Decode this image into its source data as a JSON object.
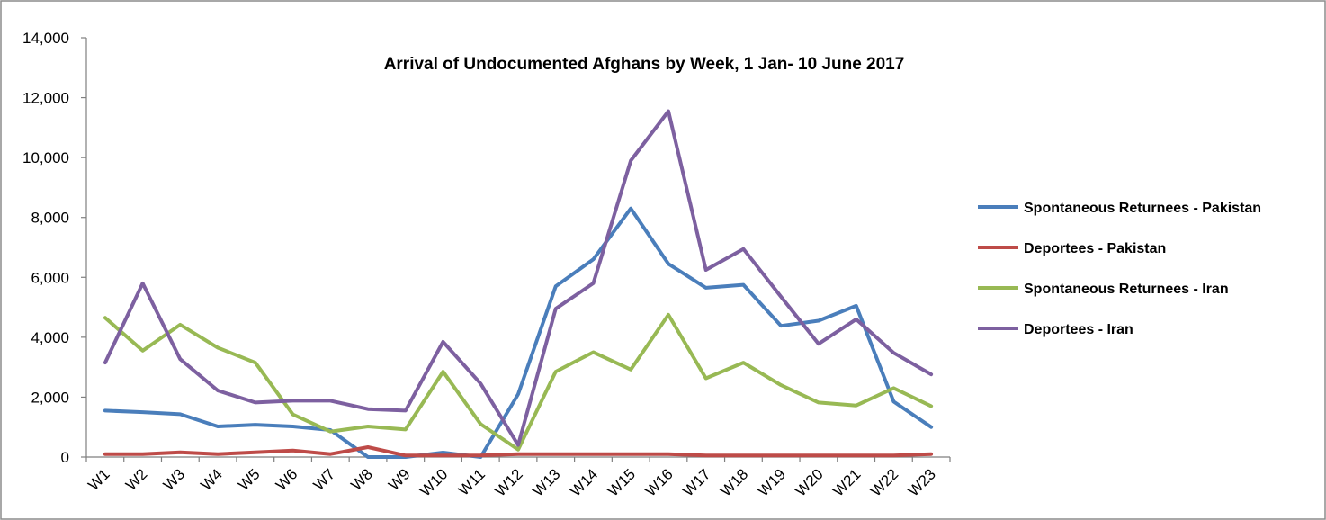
{
  "chart_data": {
    "type": "line",
    "title": "Arrival of Undocumented  Afghans by Week, 1 Jan- 10 June 2017",
    "categories": [
      "W1",
      "W2",
      "W3",
      "W4",
      "W5",
      "W6",
      "W7",
      "W8",
      "W9",
      "W10",
      "W11",
      "W12",
      "W13",
      "W14",
      "W15",
      "W16",
      "W17",
      "W18",
      "W19",
      "W20",
      "W21",
      "W22",
      "W23"
    ],
    "y_ticks": [
      "0",
      "2,000",
      "4,000",
      "6,000",
      "8,000",
      "10,000",
      "12,000",
      "14,000"
    ],
    "ylim": [
      0,
      14000
    ],
    "grid": false,
    "legend_position": "right",
    "series": [
      {
        "name": "Spontaneous Returnees - Pakistan",
        "color": "#4a7ebb",
        "values": [
          1550,
          1500,
          1430,
          1020,
          1080,
          1020,
          900,
          0,
          0,
          150,
          0,
          2100,
          5700,
          6600,
          8300,
          6450,
          5650,
          5750,
          4380,
          4550,
          5050,
          1850,
          1000
        ]
      },
      {
        "name": "Deportees - Pakistan",
        "color": "#be4b48",
        "values": [
          100,
          100,
          160,
          100,
          160,
          220,
          100,
          330,
          50,
          50,
          50,
          100,
          100,
          100,
          100,
          100,
          50,
          50,
          50,
          50,
          50,
          50,
          100
        ]
      },
      {
        "name": "Spontaneous Returnees - Iran",
        "color": "#98b954",
        "values": [
          4650,
          3550,
          4420,
          3650,
          3150,
          1420,
          850,
          1020,
          920,
          2850,
          1100,
          250,
          2850,
          3500,
          2920,
          4750,
          2630,
          3150,
          2400,
          1820,
          1720,
          2300,
          1700
        ]
      },
      {
        "name": "Deportees - Iran",
        "color": "#7d60a0",
        "values": [
          3150,
          5800,
          3270,
          2220,
          1820,
          1880,
          1880,
          1600,
          1550,
          3850,
          2450,
          400,
          4950,
          5800,
          9900,
          11550,
          6250,
          6950,
          5350,
          3780,
          4600,
          3480,
          2760
        ]
      }
    ]
  }
}
